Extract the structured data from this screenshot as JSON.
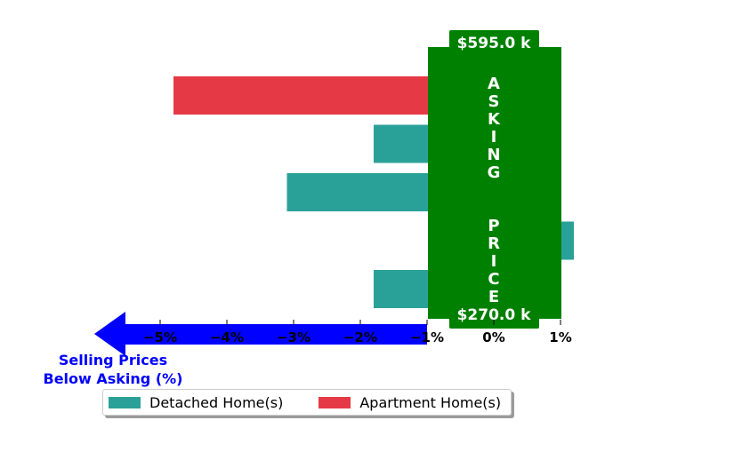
{
  "chart_data": {
    "type": "bar",
    "orientation": "horizontal",
    "xlabel": "Selling Prices\nBelow Asking (%)",
    "x_ticks": [
      -5,
      -4,
      -3,
      -2,
      -1,
      0,
      1
    ],
    "x_tick_labels": [
      "−5%",
      "−4%",
      "−3%",
      "−2%",
      "−1%",
      "0%",
      "1%"
    ],
    "xlim": [
      -6.0,
      1.2
    ],
    "bars": [
      {
        "series": "Apartment Home(s)",
        "value": -4.8
      },
      {
        "series": "Detached Home(s)",
        "value": -1.8
      },
      {
        "series": "Detached Home(s)",
        "value": -3.1
      },
      {
        "series": "Detached Home(s)",
        "value": 1.2
      },
      {
        "series": "Detached Home(s)",
        "value": -1.8
      }
    ],
    "asking_band": {
      "label": "ASKING  PRICE",
      "range": [
        -1,
        1
      ],
      "top_label": "$595.0 k",
      "bottom_label": "$270.0 k",
      "color": "#008000"
    },
    "legend": [
      {
        "name": "Detached Home(s)",
        "color": "#2aa198"
      },
      {
        "name": "Apartment Home(s)",
        "color": "#e63946"
      }
    ],
    "colors": {
      "Detached Home(s)": "#2aa198",
      "Apartment Home(s)": "#e63946",
      "arrow": "#0000ff"
    },
    "legend_position": "bottom-center",
    "grid": false
  }
}
